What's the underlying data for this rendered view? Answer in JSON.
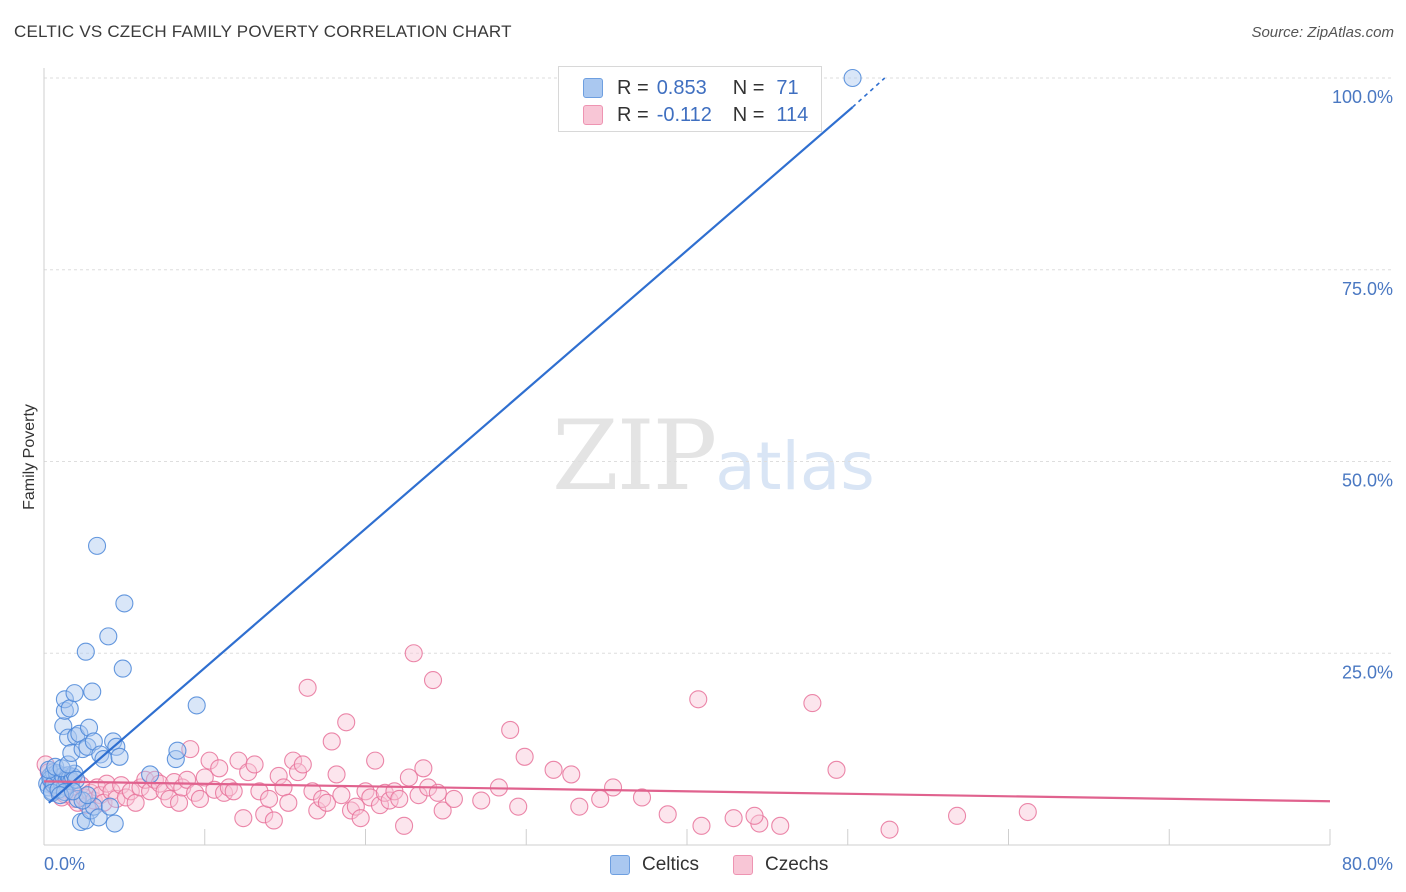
{
  "title": "CELTIC VS CZECH FAMILY POVERTY CORRELATION CHART",
  "source": "Source: ZipAtlas.com",
  "watermark": {
    "zip": "ZIP",
    "atlas": "atlas"
  },
  "legend": {
    "series": [
      {
        "r_label": "R =",
        "r_value": "0.853",
        "n_label": "N =",
        "n_value": "71"
      },
      {
        "r_label": "R =",
        "r_value": "-0.112",
        "n_label": "N =",
        "n_value": "114"
      }
    ]
  },
  "bottom_legend": {
    "celtics": "Celtics",
    "czechs": "Czechs"
  },
  "colors": {
    "blue": "#4a86d8",
    "blue_fill": "#aac8f0",
    "pink": "#e8729a",
    "pink_fill": "#f8c6d6",
    "axis_text": "#4a78c2"
  },
  "chart_data": {
    "type": "scatter",
    "title": "CELTIC VS CZECH FAMILY POVERTY CORRELATION CHART",
    "xlabel": "",
    "ylabel": "Family Poverty",
    "xlim": [
      0,
      80
    ],
    "ylim": [
      0,
      100
    ],
    "x_tick_labels": [
      "0.0%",
      "80.0%"
    ],
    "y_ticks": [
      25,
      50,
      75,
      100
    ],
    "y_tick_labels": [
      "25.0%",
      "50.0%",
      "75.0%",
      "100.0%"
    ],
    "series": [
      {
        "name": "Celtics",
        "r": 0.853,
        "n": 71,
        "trend": {
          "x1": 0.3,
          "y1": 5.5,
          "x2": 50.3,
          "y2": 96.2,
          "dash_to_x": 52.3,
          "dash_to_y": 100
        },
        "points": [
          [
            0.2,
            8.0
          ],
          [
            0.3,
            7.5
          ],
          [
            0.4,
            9.0
          ],
          [
            0.5,
            8.5
          ],
          [
            0.5,
            7.0
          ],
          [
            0.6,
            9.5
          ],
          [
            0.7,
            8.2
          ],
          [
            0.8,
            7.8
          ],
          [
            0.9,
            9.2
          ],
          [
            1.0,
            8.8
          ],
          [
            0.4,
            8.6
          ],
          [
            0.6,
            7.9
          ],
          [
            0.8,
            9.4
          ],
          [
            1.1,
            8.1
          ],
          [
            1.2,
            9.0
          ],
          [
            1.3,
            7.6
          ],
          [
            1.4,
            8.4
          ],
          [
            1.5,
            9.1
          ],
          [
            1.6,
            8.7
          ],
          [
            1.7,
            8.3
          ],
          [
            1.8,
            8.9
          ],
          [
            1.9,
            9.3
          ],
          [
            2.0,
            8.5
          ],
          [
            0.3,
            9.8
          ],
          [
            0.5,
            6.8
          ],
          [
            0.7,
            10.2
          ],
          [
            0.9,
            7.2
          ],
          [
            1.1,
            10.0
          ],
          [
            1.3,
            6.9
          ],
          [
            1.5,
            10.5
          ],
          [
            1.2,
            15.5
          ],
          [
            1.3,
            17.5
          ],
          [
            1.3,
            19.0
          ],
          [
            1.5,
            14.0
          ],
          [
            1.6,
            17.8
          ],
          [
            1.7,
            12.0
          ],
          [
            1.9,
            19.8
          ],
          [
            2.0,
            14.2
          ],
          [
            2.2,
            14.5
          ],
          [
            2.4,
            12.5
          ],
          [
            2.6,
            25.2
          ],
          [
            2.7,
            12.8
          ],
          [
            2.8,
            15.3
          ],
          [
            3.0,
            20.0
          ],
          [
            3.1,
            13.5
          ],
          [
            3.3,
            39.0
          ],
          [
            3.5,
            11.8
          ],
          [
            3.7,
            11.2
          ],
          [
            4.0,
            27.2
          ],
          [
            4.3,
            13.5
          ],
          [
            4.5,
            12.8
          ],
          [
            4.7,
            11.5
          ],
          [
            4.9,
            23.0
          ],
          [
            5.0,
            31.5
          ],
          [
            2.3,
            3.0
          ],
          [
            2.6,
            3.2
          ],
          [
            2.9,
            4.5
          ],
          [
            3.1,
            5.0
          ],
          [
            3.4,
            3.6
          ],
          [
            4.1,
            5.0
          ],
          [
            4.4,
            2.8
          ],
          [
            2.1,
            6.0
          ],
          [
            2.4,
            5.8
          ],
          [
            2.7,
            6.5
          ],
          [
            6.6,
            9.2
          ],
          [
            8.2,
            11.2
          ],
          [
            8.3,
            12.3
          ],
          [
            9.5,
            18.2
          ],
          [
            50.3,
            100.0
          ],
          [
            1.0,
            6.5
          ],
          [
            1.8,
            7.0
          ]
        ]
      },
      {
        "name": "Czechs",
        "r": -0.112,
        "n": 114,
        "trend": {
          "x1": 0.0,
          "y1": 8.3,
          "x2": 80.0,
          "y2": 5.7
        },
        "points": [
          [
            0.1,
            10.5
          ],
          [
            0.3,
            9.5
          ],
          [
            0.5,
            8.0
          ],
          [
            0.7,
            7.5
          ],
          [
            0.9,
            7.0
          ],
          [
            1.1,
            6.2
          ],
          [
            1.3,
            6.6
          ],
          [
            1.5,
            8.5
          ],
          [
            1.7,
            7.2
          ],
          [
            1.9,
            6.0
          ],
          [
            2.1,
            5.5
          ],
          [
            2.3,
            7.8
          ],
          [
            2.5,
            6.2
          ],
          [
            2.7,
            5.2
          ],
          [
            2.9,
            6.8
          ],
          [
            3.1,
            5.8
          ],
          [
            3.3,
            7.5
          ],
          [
            3.5,
            6.5
          ],
          [
            3.7,
            5.5
          ],
          [
            3.9,
            8.0
          ],
          [
            4.2,
            7.0
          ],
          [
            4.5,
            6.0
          ],
          [
            4.8,
            7.8
          ],
          [
            5.1,
            6.2
          ],
          [
            5.4,
            7.0
          ],
          [
            5.7,
            5.5
          ],
          [
            6.0,
            7.5
          ],
          [
            6.3,
            8.5
          ],
          [
            6.6,
            7.0
          ],
          [
            6.9,
            8.5
          ],
          [
            7.2,
            8.0
          ],
          [
            7.5,
            7.0
          ],
          [
            7.8,
            6.0
          ],
          [
            8.1,
            8.2
          ],
          [
            8.4,
            5.5
          ],
          [
            8.6,
            7.5
          ],
          [
            8.9,
            8.5
          ],
          [
            9.1,
            12.5
          ],
          [
            9.4,
            6.8
          ],
          [
            9.7,
            6.0
          ],
          [
            10.0,
            8.8
          ],
          [
            10.3,
            11.0
          ],
          [
            10.6,
            7.2
          ],
          [
            10.9,
            10.0
          ],
          [
            11.2,
            6.8
          ],
          [
            11.5,
            7.5
          ],
          [
            11.8,
            7.0
          ],
          [
            12.1,
            11.0
          ],
          [
            12.4,
            3.5
          ],
          [
            12.7,
            9.5
          ],
          [
            13.1,
            10.5
          ],
          [
            13.4,
            7.0
          ],
          [
            13.7,
            4.0
          ],
          [
            14.0,
            6.0
          ],
          [
            14.3,
            3.2
          ],
          [
            14.6,
            9.0
          ],
          [
            14.9,
            7.5
          ],
          [
            15.2,
            5.5
          ],
          [
            15.5,
            11.0
          ],
          [
            15.8,
            9.5
          ],
          [
            16.1,
            10.5
          ],
          [
            16.4,
            20.5
          ],
          [
            16.7,
            7.0
          ],
          [
            17.0,
            4.5
          ],
          [
            17.3,
            6.0
          ],
          [
            17.6,
            5.5
          ],
          [
            17.9,
            13.5
          ],
          [
            18.2,
            9.2
          ],
          [
            18.5,
            6.5
          ],
          [
            18.8,
            16.0
          ],
          [
            19.1,
            4.5
          ],
          [
            19.4,
            5.0
          ],
          [
            19.7,
            3.5
          ],
          [
            20.0,
            7.0
          ],
          [
            20.3,
            6.2
          ],
          [
            20.6,
            11.0
          ],
          [
            20.9,
            5.2
          ],
          [
            21.2,
            6.8
          ],
          [
            21.5,
            5.8
          ],
          [
            21.8,
            7.0
          ],
          [
            22.1,
            6.0
          ],
          [
            22.4,
            2.5
          ],
          [
            22.7,
            8.8
          ],
          [
            23.0,
            25.0
          ],
          [
            23.3,
            6.5
          ],
          [
            23.6,
            10.0
          ],
          [
            23.9,
            7.5
          ],
          [
            24.2,
            21.5
          ],
          [
            24.5,
            6.8
          ],
          [
            24.8,
            4.5
          ],
          [
            25.5,
            6.0
          ],
          [
            27.2,
            5.8
          ],
          [
            28.3,
            7.5
          ],
          [
            29.0,
            15.0
          ],
          [
            29.9,
            11.5
          ],
          [
            31.7,
            9.8
          ],
          [
            32.8,
            9.2
          ],
          [
            35.4,
            7.5
          ],
          [
            37.2,
            6.2
          ],
          [
            38.8,
            4.0
          ],
          [
            40.7,
            19.0
          ],
          [
            40.9,
            2.5
          ],
          [
            42.9,
            3.5
          ],
          [
            44.5,
            2.8
          ],
          [
            45.8,
            2.5
          ],
          [
            47.8,
            18.5
          ],
          [
            49.3,
            9.8
          ],
          [
            52.6,
            2.0
          ],
          [
            56.8,
            3.8
          ],
          [
            61.2,
            4.3
          ],
          [
            29.5,
            5.0
          ],
          [
            33.3,
            5.0
          ],
          [
            34.6,
            6.0
          ],
          [
            44.2,
            3.8
          ]
        ]
      }
    ]
  }
}
